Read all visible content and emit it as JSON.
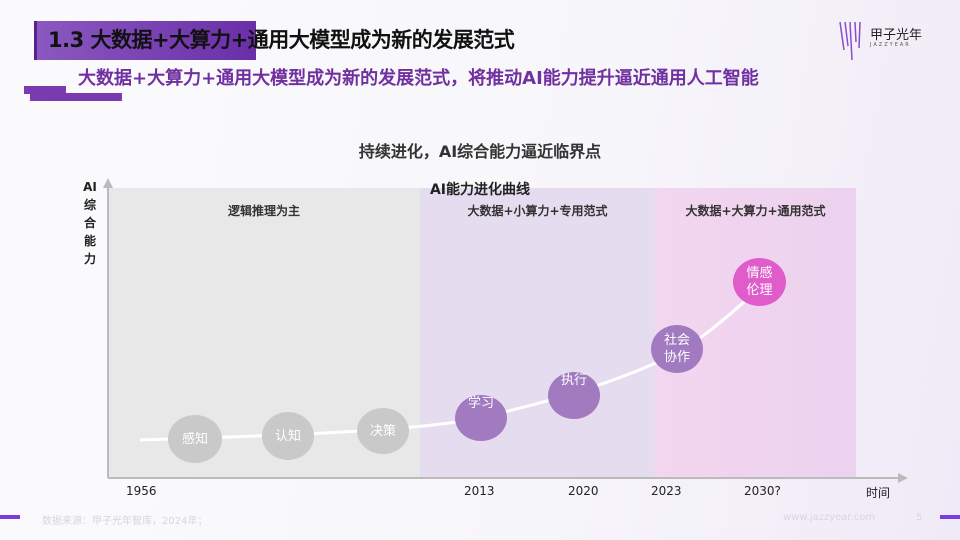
{
  "header": {
    "title": "1.3 大数据+大算力+通用大模型成为新的发展范式",
    "subtitle": "大数据+大算力+通用大模型成为新的发展范式，将推动AI能力提升逼近通用人工智能",
    "logo_text": "甲子光年",
    "logo_sub": "JAZZYEAR"
  },
  "chart": {
    "title": "持续进化，AI综合能力逼近临界点",
    "curve_title": "AI能力进化曲线",
    "y_label": "AI综合能力",
    "x_label": "时间",
    "regions": [
      {
        "label": "逻辑推理为主",
        "color": "#e8e8e8"
      },
      {
        "label": "大数据+小算力+专用范式",
        "color": "#e6dcef"
      },
      {
        "label": "大数据+大算力+通用范式",
        "color": "#f1d4ee"
      }
    ],
    "years": [
      "1956",
      "2013",
      "2020",
      "2023",
      "2030?"
    ],
    "nodes": [
      {
        "label": "感知",
        "color": "#c9c9c9"
      },
      {
        "label": "认知",
        "color": "#c9c9c9"
      },
      {
        "label": "决策",
        "color": "#c9c9c9"
      },
      {
        "label": "学习",
        "color": "#a27ac0"
      },
      {
        "label": "执行",
        "color": "#a27ac0"
      },
      {
        "label": "社会协作",
        "color": "#a27ac0"
      },
      {
        "label": "情感伦理",
        "color": "#e05ccb"
      }
    ]
  },
  "footer": {
    "source": "数据来源：甲子光年智库，2024年；",
    "url": "www.jazzyear.com",
    "page": "5"
  }
}
